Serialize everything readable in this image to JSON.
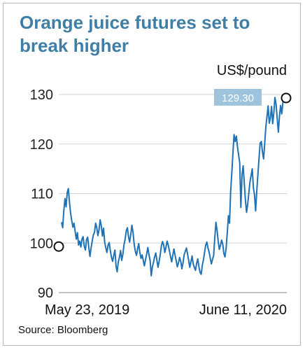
{
  "chart_data": {
    "type": "line",
    "title": "Orange juice futures set to break higher",
    "ylabel": "US$/pound",
    "source": "Source: Bloomberg",
    "ylim": [
      90,
      130
    ],
    "yticks": [
      "130",
      "120",
      "110",
      "100",
      "90"
    ],
    "ytick_values": [
      130,
      120,
      110,
      100,
      90
    ],
    "xticks": [
      "May 23, 2019",
      "June 11, 2020"
    ],
    "grid": true,
    "line_color": "#1f72b5",
    "callout": {
      "label": "129.30",
      "value": 129.3,
      "color": "#9ec3dd"
    },
    "start_value": 99.3,
    "series": [
      {
        "values": [
          104.2,
          103.1,
          106.5,
          109.0,
          107.3,
          110.2,
          111.0,
          108.1,
          106.0,
          104.5,
          103.2,
          104.0,
          102.3,
          100.8,
          102.1,
          99.6,
          100.4,
          99.2,
          100.8,
          101.3,
          99.4,
          98.6,
          100.7,
          101.2,
          99.1,
          97.3,
          99.0,
          100.4,
          101.6,
          102.2,
          104.0,
          103.2,
          101.5,
          102.6,
          104.7,
          103.5,
          101.4,
          103.0,
          100.1,
          99.0,
          98.1,
          99.6,
          100.1,
          98.4,
          97.1,
          96.3,
          97.5,
          98.6,
          95.3,
          94.2,
          96.2,
          97.1,
          98.5,
          96.5,
          97.7,
          99.6,
          100.8,
          102.5,
          103.1,
          101.3,
          100.2,
          101.8,
          103.6,
          102.1,
          99.8,
          98.3,
          97.5,
          98.9,
          99.9,
          98.1,
          96.9,
          97.6,
          96.5,
          95.4,
          96.7,
          97.8,
          99.1,
          97.7,
          96.5,
          93.4,
          95.2,
          96.1,
          97.2,
          98.0,
          96.5,
          95.1,
          96.3,
          97.8,
          99.5,
          100.3,
          99.6,
          98.1,
          99.2,
          100.4,
          99.6,
          98.5,
          97.3,
          96.2,
          97.5,
          98.8,
          97.6,
          96.4,
          95.2,
          96.0,
          97.1,
          96.3,
          94.8,
          96.0,
          97.6,
          98.3,
          99.0,
          97.8,
          96.5,
          95.1,
          96.2,
          97.4,
          95.8,
          95.1,
          94.5,
          95.9,
          96.8,
          95.3,
          94.1,
          93.7,
          95.5,
          96.6,
          98.1,
          99.6,
          100.2,
          99.0,
          98.2,
          97.0,
          95.8,
          96.7,
          97.5,
          101.0,
          104.2,
          102.6,
          100.4,
          98.7,
          99.5,
          100.6,
          99.8,
          97.9,
          97.2,
          99.0,
          102.1,
          105.5,
          104.0,
          110.4,
          114.2,
          118.3,
          121.9,
          120.5,
          121.6,
          119.4,
          117.8,
          116.2,
          107.2,
          113.8,
          115.6,
          112.2,
          108.7,
          106.2,
          107.9,
          110.1,
          112.3,
          113.6,
          115.0,
          111.2,
          109.8,
          106.5,
          110.6,
          113.9,
          117.2,
          120.2,
          120.5,
          118.4,
          117.0,
          120.1,
          123.4,
          125.6,
          127.7,
          124.2,
          125.3,
          127.6,
          124.1,
          126.2,
          129.4,
          128.1,
          125.1,
          122.4,
          125.6,
          127.8,
          126.1,
          128.4,
          129.3
        ]
      }
    ]
  }
}
